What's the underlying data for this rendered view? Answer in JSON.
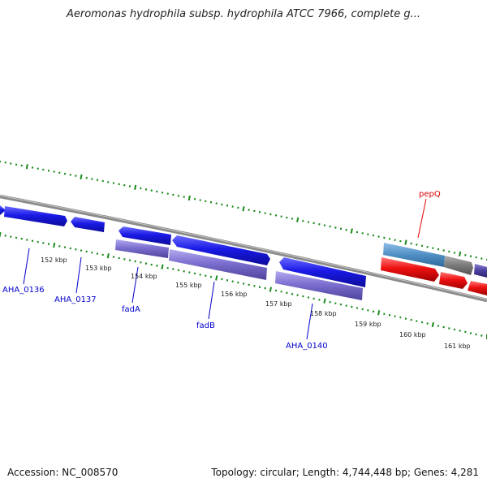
{
  "title": "Aeromonas hydrophila subsp. hydrophila ATCC 7966, complete g...",
  "footer": {
    "accession": "Accession: NC_008570",
    "summary": "Topology: circular; Length: 4,744,448 bp; Genes: 4,281"
  },
  "colors": {
    "tick": "#1a8a1a",
    "backbone": "#8a8a8a",
    "cds_forward": "#1a1ae6",
    "cds_reverse": "#7b6fd0",
    "rna_red": "#ee1111",
    "label_blue": "#0000cc",
    "label_red": "#dd0000"
  },
  "kbp_labels": [
    "152 kbp",
    "153 kbp",
    "154 kbp",
    "155 kbp",
    "156 kbp",
    "157 kbp",
    "158 kbp",
    "159 kbp",
    "160 kbp",
    "161 kbp"
  ],
  "gene_labels": [
    {
      "text": "AHA_0136",
      "color": "blue"
    },
    {
      "text": "AHA_0137",
      "color": "blue"
    },
    {
      "text": "fadA",
      "color": "blue"
    },
    {
      "text": "fadB",
      "color": "blue"
    },
    {
      "text": "AHA_0140",
      "color": "blue"
    },
    {
      "text": "pepQ",
      "color": "red"
    }
  ]
}
